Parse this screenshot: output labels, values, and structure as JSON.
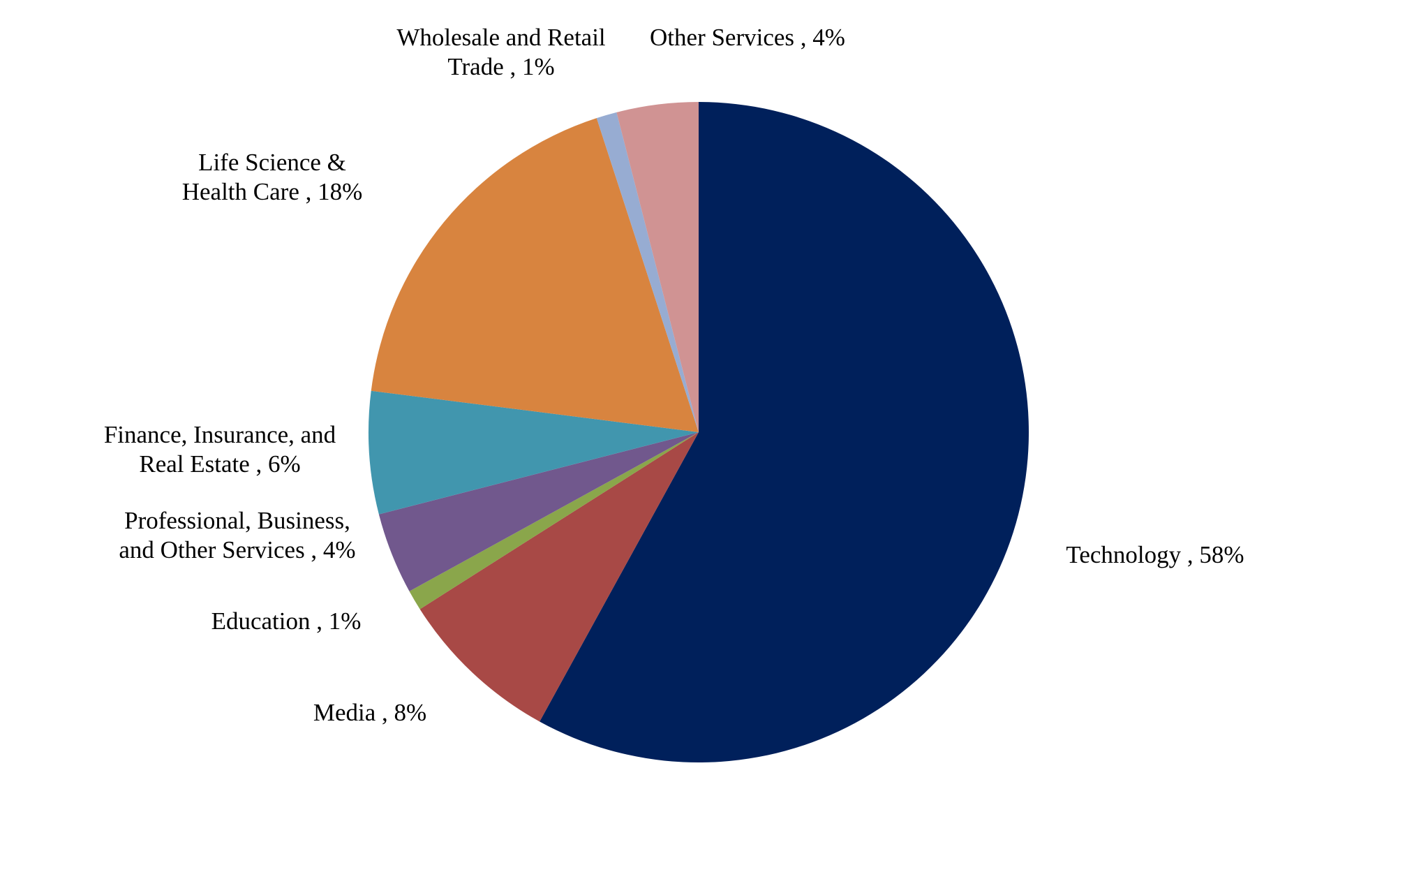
{
  "chart_data": {
    "type": "pie",
    "title": "",
    "start_angle_deg": 0,
    "direction": "clockwise",
    "slices": [
      {
        "label_lines": [
          "Technology , 58%"
        ],
        "value": 58,
        "color": "#00205b"
      },
      {
        "label_lines": [
          "Media , 8%"
        ],
        "value": 8,
        "color": "#a84946"
      },
      {
        "label_lines": [
          "Education , 1%"
        ],
        "value": 1,
        "color": "#8aa64b"
      },
      {
        "label_lines": [
          "Professional, Business,",
          "and Other Services , 4%"
        ],
        "value": 4,
        "color": "#71588d"
      },
      {
        "label_lines": [
          "Finance, Insurance, and",
          "Real Estate , 6%"
        ],
        "value": 6,
        "color": "#4196ae"
      },
      {
        "label_lines": [
          "Life Science &",
          "Health Care , 18%"
        ],
        "value": 18,
        "color": "#d8843f"
      },
      {
        "label_lines": [
          "Wholesale and Retail",
          "Trade , 1%"
        ],
        "value": 1,
        "color": "#97acd2"
      },
      {
        "label_lines": [
          "Other Services , 4%"
        ],
        "value": 4,
        "color": "#d09393"
      }
    ]
  }
}
